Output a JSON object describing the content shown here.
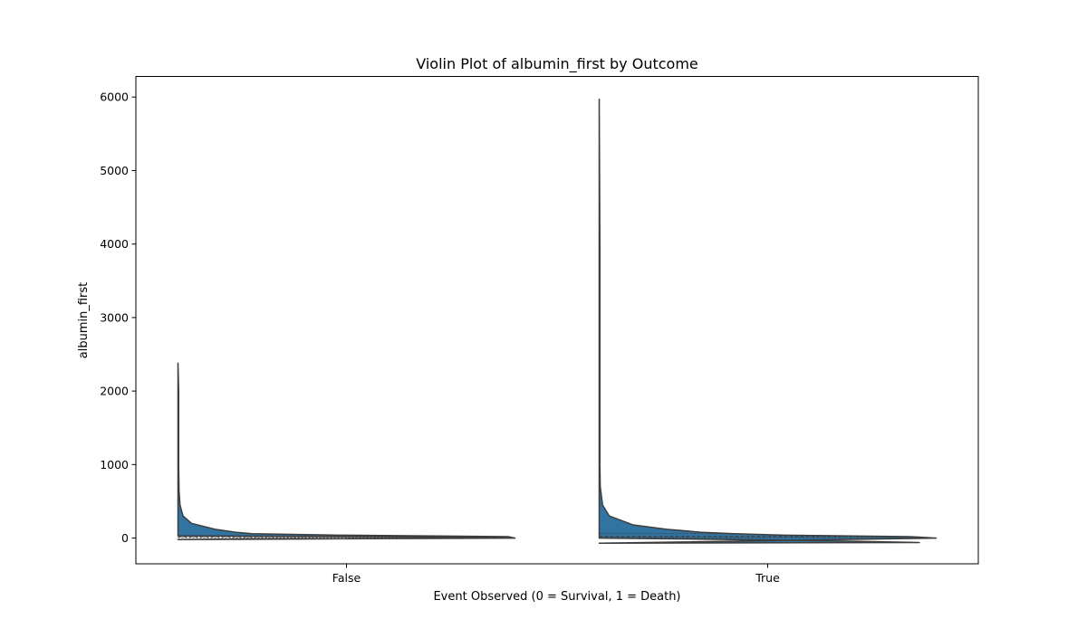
{
  "chart_data": {
    "type": "violin",
    "title": "Violin Plot of albumin_first by Outcome",
    "xlabel": "Event Observed (0 = Survival, 1 = Death)",
    "ylabel": "albumin_first",
    "categories": [
      "False",
      "True"
    ],
    "y_ticks": [
      0,
      1000,
      2000,
      3000,
      4000,
      5000,
      6000
    ],
    "ylim": [
      -350,
      6280
    ],
    "grid": false,
    "legend": "none",
    "colors": {
      "fill": "#3274a1",
      "edge": "#3d3d3d"
    },
    "violins": [
      {
        "category": "False",
        "min": -20,
        "max": 2380,
        "quartiles": [
          5,
          18,
          30
        ],
        "density_upper": [
          [
            -20,
            0.0
          ],
          [
            0,
            1.0
          ],
          [
            20,
            0.98
          ],
          [
            40,
            0.48
          ],
          [
            60,
            0.22
          ],
          [
            80,
            0.17
          ],
          [
            120,
            0.11
          ],
          [
            200,
            0.04
          ],
          [
            300,
            0.015
          ],
          [
            450,
            0.006
          ],
          [
            650,
            0.003
          ],
          [
            1000,
            0.002
          ],
          [
            1500,
            0.002
          ],
          [
            2000,
            0.002
          ],
          [
            2380,
            0.0
          ]
        ],
        "density_lower": [
          [
            -20,
            0.0
          ],
          [
            -10,
            0.22
          ],
          [
            0,
            1.0
          ],
          [
            10,
            0.98
          ],
          [
            20,
            0.48
          ],
          [
            30,
            0.0
          ]
        ]
      },
      {
        "category": "True",
        "min": -70,
        "max": 5970,
        "quartiles": [
          5,
          22,
          60
        ],
        "density_upper": [
          [
            -70,
            0.0
          ],
          [
            0,
            1.0
          ],
          [
            20,
            0.92
          ],
          [
            40,
            0.55
          ],
          [
            60,
            0.4
          ],
          [
            80,
            0.3
          ],
          [
            120,
            0.2
          ],
          [
            180,
            0.1
          ],
          [
            300,
            0.03
          ],
          [
            450,
            0.01
          ],
          [
            700,
            0.003
          ],
          [
            1000,
            0.002
          ],
          [
            2000,
            0.002
          ],
          [
            4000,
            0.002
          ],
          [
            5970,
            0.0
          ]
        ],
        "density_lower": [
          [
            -70,
            0.0
          ],
          [
            -60,
            0.95
          ],
          [
            -40,
            0.72
          ],
          [
            -20,
            0.4
          ],
          [
            0,
            0.0
          ]
        ]
      }
    ]
  }
}
